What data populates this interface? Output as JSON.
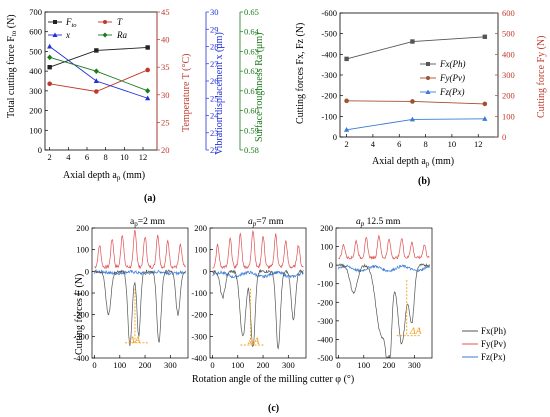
{
  "colors": {
    "black": "#222222",
    "red": "#c0392b",
    "blue": "#2231d6",
    "green": "#1a7a1a",
    "orange": "#f0a020",
    "gray_line": "#555555",
    "blue_line": "#3a7bd5",
    "red_line": "#e05050"
  },
  "chart_data": [
    {
      "id": "a",
      "panel_label": "(a)",
      "type": "line",
      "xlabel": "Axial depth a",
      "xlabel_sub": "p",
      "xlabel_unit": " (mm)",
      "x_ticks": [
        "2",
        "4",
        "6",
        "8",
        "10",
        "12"
      ],
      "xlim": [
        1.5,
        13.5
      ],
      "axes": [
        {
          "id": "F",
          "label": "Total cutting force F",
          "label_sub": "to",
          "label_unit": " (N)",
          "ylim": [
            0,
            700
          ],
          "ticks": [
            "0",
            "100",
            "200",
            "300",
            "400",
            "500",
            "600",
            "700"
          ],
          "color": "#222222"
        },
        {
          "id": "T",
          "label": "Temperature T (°C)",
          "ylim": [
            20,
            45
          ],
          "ticks": [
            "20",
            "25",
            "30",
            "35",
            "40",
            "45"
          ],
          "color": "#c0392b"
        },
        {
          "id": "x",
          "label": "Vibration displacement x (μm)",
          "ylim": [
            22,
            30
          ],
          "ticks": [
            "22",
            "23",
            "24",
            "25",
            "26",
            "27",
            "28",
            "29",
            "30"
          ],
          "color": "#2231d6"
        },
        {
          "id": "Ra",
          "label": "Surface roughness Ra (μm)",
          "ylim": [
            0.58,
            0.65
          ],
          "ticks": [
            "0.58",
            "0.59",
            "0.60",
            "0.61",
            "0.62",
            "0.63",
            "0.64",
            "0.65"
          ],
          "color": "#1a7a1a"
        }
      ],
      "series": [
        {
          "name": "F",
          "name_sub": "to",
          "axis": "F",
          "color": "#222222",
          "marker": "square",
          "x": [
            2,
            7,
            12.5
          ],
          "y": [
            420,
            505,
            520
          ]
        },
        {
          "name": "T",
          "axis": "T",
          "color": "#c0392b",
          "marker": "circle",
          "x": [
            2,
            7,
            12.5
          ],
          "y": [
            32,
            30.6,
            34.5
          ]
        },
        {
          "name": "x",
          "axis": "x",
          "color": "#2231d6",
          "marker": "triangle",
          "x": [
            2,
            7,
            12.5
          ],
          "y": [
            28,
            26,
            25
          ]
        },
        {
          "name": "Ra",
          "axis": "Ra",
          "color": "#1a7a1a",
          "marker": "diamond",
          "x": [
            2,
            7,
            12.5
          ],
          "y": [
            0.627,
            0.62,
            0.61
          ]
        }
      ],
      "legend_position": "top"
    },
    {
      "id": "b",
      "panel_label": "(b)",
      "type": "line",
      "xlabel": "Axial depth a",
      "xlabel_sub": "p",
      "xlabel_unit": " (mm)",
      "x_ticks": [
        "2",
        "4",
        "6",
        "8",
        "10",
        "12"
      ],
      "xlim": [
        1.5,
        13.5
      ],
      "axes": [
        {
          "id": "left",
          "label": "Cutting forces Fx, Fz (N)",
          "ylim": [
            0,
            -600
          ],
          "ticks": [
            "0",
            "-100",
            "-200",
            "-300",
            "-400",
            "-500",
            "-600"
          ],
          "color": "#222222"
        },
        {
          "id": "right",
          "label": "Cutting force Fy (N)",
          "ylim": [
            0,
            600
          ],
          "ticks": [
            "0",
            "100",
            "200",
            "300",
            "400",
            "500",
            "600"
          ],
          "color": "#c0392b"
        }
      ],
      "series": [
        {
          "name": "Fx(Ph)",
          "axis": "left",
          "color": "#555555",
          "marker": "square",
          "x": [
            2,
            7,
            12.5
          ],
          "y": [
            -378,
            -462,
            -485
          ]
        },
        {
          "name": "Fy(Pv)",
          "axis": "right",
          "color": "#a0522d",
          "marker": "circle",
          "x": [
            2,
            7,
            12.5
          ],
          "y": [
            175,
            172,
            160
          ]
        },
        {
          "name": "Fz(Px)",
          "axis": "left",
          "color": "#3a7bd5",
          "marker": "triangle",
          "x": [
            2,
            7,
            12.5
          ],
          "y": [
            -35,
            -85,
            -88
          ]
        }
      ],
      "legend_position": "center-right"
    },
    {
      "id": "c",
      "panel_label": "(c)",
      "type": "line",
      "ylabel": "Cutting forces F (N)",
      "xlabel": "Rotation angle of the milling cutter φ (°)",
      "subplots": [
        {
          "title": "a",
          "title_sub": "p",
          "title_value": "=2 mm",
          "x_ticks": [
            "0",
            "100",
            "200",
            "300"
          ],
          "xlim": [
            -10,
            370
          ],
          "ylim": [
            -400,
            200
          ],
          "y_ticks": [
            "200",
            "100",
            "0",
            "-100",
            "-200",
            "-300",
            "-400"
          ],
          "delta_label": "ΔA"
        },
        {
          "title": "a",
          "title_sub": "p",
          "title_value": "=7 mm",
          "x_ticks": [
            "0",
            "100",
            "200",
            "300"
          ],
          "xlim": [
            -10,
            370
          ],
          "ylim": [
            -400,
            200
          ],
          "y_ticks": [
            "200",
            "100",
            "0",
            "-100",
            "-200",
            "-300",
            "-400"
          ],
          "delta_label": "ΔA"
        },
        {
          "title": "a",
          "title_sub": "p",
          "title_value": "  12.5 mm",
          "x_ticks": [
            "0",
            "100",
            "200",
            "300"
          ],
          "xlim": [
            -10,
            370
          ],
          "ylim": [
            -500,
            200
          ],
          "y_ticks": [
            "200",
            "100",
            "0",
            "-100",
            "-200",
            "-300",
            "-400",
            "-500"
          ],
          "delta_label": "ΔA"
        }
      ],
      "legend": [
        {
          "name": "Fx(Ph)",
          "color": "#555555"
        },
        {
          "name": "Fy(Pv)",
          "color": "#e05050"
        },
        {
          "name": "Fz(Px)",
          "color": "#3a7bd5"
        }
      ]
    }
  ]
}
